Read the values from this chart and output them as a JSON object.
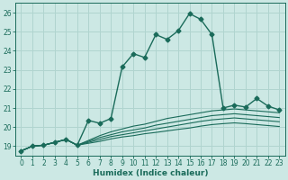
{
  "xlabel": "Humidex (Indice chaleur)",
  "bg_color": "#cce8e4",
  "grid_color": "#b0d4cf",
  "line_color": "#1a6b5a",
  "xlim": [
    -0.5,
    23.5
  ],
  "ylim": [
    18.5,
    26.5
  ],
  "yticks": [
    19,
    20,
    21,
    22,
    23,
    24,
    25,
    26
  ],
  "xticks": [
    0,
    1,
    2,
    3,
    4,
    5,
    6,
    7,
    8,
    9,
    10,
    11,
    12,
    13,
    14,
    15,
    16,
    17,
    18,
    19,
    20,
    21,
    22,
    23
  ],
  "main_line": {
    "x": [
      0,
      1,
      2,
      3,
      4,
      5,
      6,
      7,
      8,
      9,
      10,
      11,
      12,
      13,
      14,
      15,
      16,
      17,
      18,
      19,
      20,
      21,
      22,
      23
    ],
    "y": [
      18.75,
      19.0,
      19.05,
      19.2,
      19.35,
      19.05,
      20.35,
      20.2,
      20.45,
      23.15,
      23.85,
      23.65,
      24.85,
      24.6,
      25.05,
      25.95,
      25.65,
      24.85,
      21.0,
      21.15,
      21.05,
      21.5,
      21.1,
      20.9
    ],
    "marker": "D",
    "markersize": 2.5,
    "linewidth": 1.0
  },
  "fan_lines": [
    {
      "x": [
        0,
        1,
        2,
        3,
        4,
        5,
        6,
        7,
        8,
        9,
        10,
        11,
        12,
        13,
        14,
        15,
        16,
        17,
        18,
        19,
        20,
        21,
        22,
        23
      ],
      "y": [
        18.75,
        19.0,
        19.05,
        19.2,
        19.35,
        19.05,
        19.3,
        19.55,
        19.75,
        19.9,
        20.05,
        20.15,
        20.3,
        20.45,
        20.55,
        20.65,
        20.75,
        20.85,
        20.9,
        20.95,
        20.9,
        20.85,
        20.8,
        20.75
      ]
    },
    {
      "x": [
        0,
        1,
        2,
        3,
        4,
        5,
        6,
        7,
        8,
        9,
        10,
        11,
        12,
        13,
        14,
        15,
        16,
        17,
        18,
        19,
        20,
        21,
        22,
        23
      ],
      "y": [
        18.75,
        19.0,
        19.05,
        19.2,
        19.35,
        19.05,
        19.25,
        19.45,
        19.6,
        19.75,
        19.85,
        19.95,
        20.1,
        20.2,
        20.3,
        20.4,
        20.5,
        20.6,
        20.65,
        20.7,
        20.65,
        20.6,
        20.55,
        20.5
      ]
    },
    {
      "x": [
        0,
        1,
        2,
        3,
        4,
        5,
        6,
        7,
        8,
        9,
        10,
        11,
        12,
        13,
        14,
        15,
        16,
        17,
        18,
        19,
        20,
        21,
        22,
        23
      ],
      "y": [
        18.75,
        19.0,
        19.05,
        19.2,
        19.35,
        19.05,
        19.2,
        19.35,
        19.5,
        19.6,
        19.7,
        19.8,
        19.9,
        20.0,
        20.1,
        20.2,
        20.3,
        20.38,
        20.43,
        20.48,
        20.43,
        20.38,
        20.33,
        20.28
      ]
    },
    {
      "x": [
        0,
        1,
        2,
        3,
        4,
        5,
        6,
        7,
        8,
        9,
        10,
        11,
        12,
        13,
        14,
        15,
        16,
        17,
        18,
        19,
        20,
        21,
        22,
        23
      ],
      "y": [
        18.75,
        19.0,
        19.05,
        19.2,
        19.35,
        19.05,
        19.15,
        19.25,
        19.38,
        19.48,
        19.55,
        19.65,
        19.72,
        19.8,
        19.88,
        19.95,
        20.05,
        20.13,
        20.18,
        20.22,
        20.18,
        20.13,
        20.08,
        20.03
      ]
    }
  ]
}
